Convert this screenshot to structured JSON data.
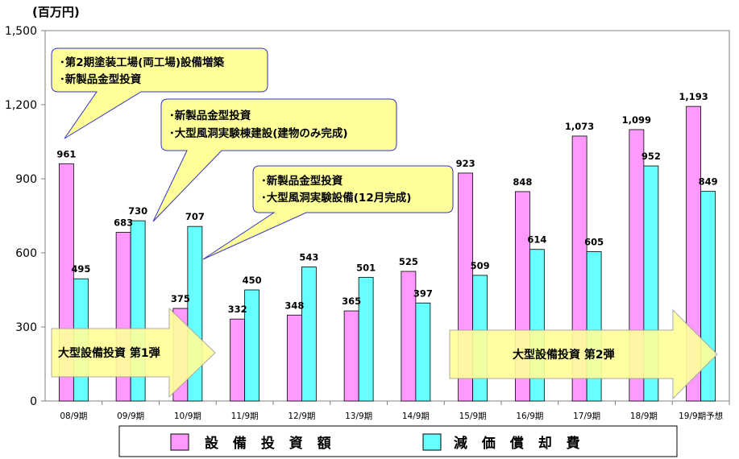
{
  "chart_data": {
    "type": "bar",
    "unit_label": "(百万円)",
    "categories": [
      "08/9期",
      "09/9期",
      "10/9期",
      "11/9期",
      "12/9期",
      "13/9期",
      "14/9期",
      "15/9期",
      "16/9期",
      "17/9期",
      "18/9期",
      "19/9期予想"
    ],
    "series": [
      {
        "name": "設 備 投 資 額",
        "color": "#ff99ff",
        "values": [
          961,
          683,
          375,
          332,
          348,
          365,
          525,
          923,
          848,
          1073,
          1099,
          1193
        ]
      },
      {
        "name": "減 価 償 却 費",
        "color": "#66ffff",
        "values": [
          495,
          730,
          707,
          450,
          543,
          501,
          397,
          509,
          614,
          605,
          952,
          849
        ]
      }
    ],
    "ylim": [
      0,
      1500
    ],
    "yticks": [
      0,
      300,
      600,
      900,
      1200,
      1500
    ],
    "ytick_labels": [
      "0",
      "300",
      "600",
      "900",
      "1,200",
      "1,500"
    ],
    "value_labels": [
      [
        "961",
        "683",
        "375",
        "332",
        "348",
        "365",
        "525",
        "923",
        "848",
        "1,073",
        "1,099",
        "1,193"
      ],
      [
        "495",
        "730",
        "707",
        "450",
        "543",
        "501",
        "397",
        "509",
        "614",
        "605",
        "952",
        "849"
      ]
    ],
    "grid": false,
    "legend_position": "bottom",
    "annotations": [
      {
        "lines": [
          "･第2期塗装工場(両工場)設備増築",
          "･新製品金型投資"
        ],
        "points_to": "08/9期"
      },
      {
        "lines": [
          "･新製品金型投資",
          "･大型風洞実験棟建設(建物のみ完成)"
        ],
        "points_to": "09/9期"
      },
      {
        "lines": [
          "･新製品金型投資",
          "･大型風洞実験設備(12月完成)"
        ],
        "points_to": "10/9期"
      }
    ],
    "arrows": [
      {
        "label": "大型設備投資 第1弾",
        "color": "#ffff99"
      },
      {
        "label": "大型設備投資 第2弾",
        "color": "#ffff99"
      }
    ]
  }
}
